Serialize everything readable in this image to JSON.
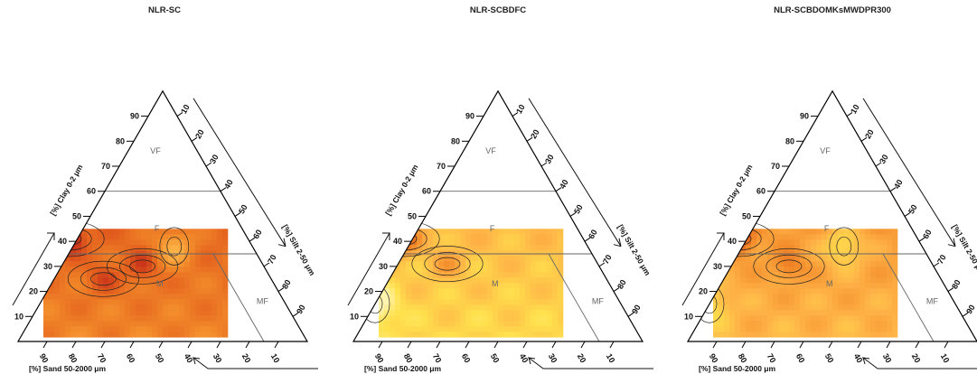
{
  "chart_data": [
    {
      "type": "heatmap",
      "subtype": "soil-texture-ternary",
      "title": "NLR-SC",
      "axes": {
        "clay": {
          "label": "[%] Clay 0-2 μm",
          "ticks": [
            "10",
            "20",
            "30",
            "40",
            "50",
            "60",
            "70",
            "80",
            "90"
          ]
        },
        "silt": {
          "label": "[%] Silt 2-50 μm",
          "ticks": [
            "10",
            "20",
            "30",
            "40",
            "50",
            "60",
            "70",
            "80",
            "90"
          ]
        },
        "sand": {
          "label": "[%] Sand 50-2000 μm",
          "ticks": [
            "90",
            "80",
            "70",
            "60",
            "50",
            "40",
            "30",
            "20",
            "10"
          ]
        }
      },
      "classes": [
        "VF",
        "F",
        "M",
        "MF"
      ],
      "heat_extent": {
        "clay": [
          5,
          45
        ],
        "sand": [
          20,
          90
        ]
      },
      "palette": [
        "#fff3b0",
        "#ffe14d",
        "#ffb347",
        "#f28a2a",
        "#e4611e",
        "#c8321a"
      ],
      "intensity_level": 0.7,
      "hotspots": [
        {
          "clay": 41,
          "sand": 62,
          "value": 1.0
        },
        {
          "clay": 25,
          "sand": 58,
          "value": 0.45
        },
        {
          "clay": 30,
          "sand": 42,
          "value": 0.5
        }
      ],
      "coolspots": [
        {
          "clay": 38,
          "sand": 27,
          "value": -0.5
        }
      ]
    },
    {
      "type": "heatmap",
      "subtype": "soil-texture-ternary",
      "title": "NLR-SCBDFC",
      "axes": {
        "clay": {
          "label": "[%] Clay 0-2 μm",
          "ticks": [
            "10",
            "20",
            "30",
            "40",
            "50",
            "60",
            "70",
            "80",
            "90"
          ]
        },
        "silt": {
          "label": "[%] Silt 2-50 μm",
          "ticks": [
            "10",
            "20",
            "30",
            "40",
            "50",
            "60",
            "70",
            "80",
            "90"
          ]
        },
        "sand": {
          "label": "[%] Sand 50-2000 μm",
          "ticks": [
            "90",
            "80",
            "70",
            "60",
            "50",
            "40",
            "30",
            "20",
            "10"
          ]
        }
      },
      "classes": [
        "VF",
        "F",
        "M",
        "MF"
      ],
      "heat_extent": {
        "clay": [
          5,
          45
        ],
        "sand": [
          20,
          90
        ]
      },
      "palette": [
        "#fff3b0",
        "#ffe14d",
        "#ffb347",
        "#f28a2a",
        "#e4611e",
        "#c8321a"
      ],
      "intensity_level": 0.3,
      "hotspots": [
        {
          "clay": 41,
          "sand": 62,
          "value": 1.0
        },
        {
          "clay": 31,
          "sand": 52,
          "value": 0.4
        }
      ],
      "coolspots": [
        {
          "clay": 15,
          "sand": 85,
          "value": -0.6
        }
      ]
    },
    {
      "type": "heatmap",
      "subtype": "soil-texture-ternary",
      "title": "NLR-SCBDOMKsMWDPR300",
      "axes": {
        "clay": {
          "label": "[%] Clay 0-2 μm",
          "ticks": [
            "10",
            "20",
            "30",
            "40",
            "50",
            "60",
            "70",
            "80",
            "90"
          ]
        },
        "silt": {
          "label": "[%] Silt 2-50 μm",
          "ticks": [
            "10",
            "20",
            "30",
            "40",
            "50",
            "60",
            "70",
            "80",
            "90"
          ]
        },
        "sand": {
          "label": "[%] Sand 50-2000 μm",
          "ticks": [
            "90",
            "80",
            "70",
            "60",
            "50",
            "40",
            "30",
            "20",
            "10"
          ]
        }
      },
      "classes": [
        "VF",
        "F",
        "M",
        "MF"
      ],
      "heat_extent": {
        "clay": [
          5,
          45
        ],
        "sand": [
          20,
          90
        ]
      },
      "palette": [
        "#fff3b0",
        "#ffe14d",
        "#ffb347",
        "#f28a2a",
        "#e4611e",
        "#c8321a"
      ],
      "intensity_level": 0.45,
      "hotspots": [
        {
          "clay": 41,
          "sand": 62,
          "value": 1.0
        },
        {
          "clay": 30,
          "sand": 50,
          "value": 0.45
        }
      ],
      "coolspots": [
        {
          "clay": 15,
          "sand": 85,
          "value": -0.4
        },
        {
          "clay": 38,
          "sand": 27,
          "value": -0.5
        }
      ]
    }
  ]
}
